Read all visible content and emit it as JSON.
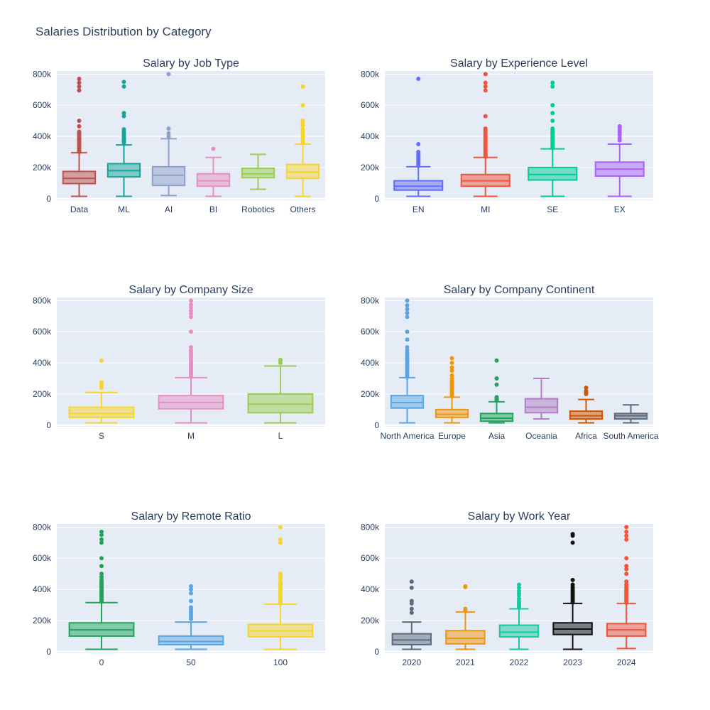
{
  "page_title": "Salaries Distribution by Category",
  "y_tick_labels": [
    "0",
    "200k",
    "400k",
    "600k",
    "800k"
  ],
  "chart_data": [
    {
      "type": "box",
      "title": "Salary by Job Type",
      "ylim": [
        -10000,
        820000
      ],
      "yticks": [
        0,
        200000,
        400000,
        600000,
        800000
      ],
      "grid": true,
      "categories": [
        "Data",
        "ML",
        "AI",
        "BI",
        "Robotics",
        "Others"
      ],
      "colors": [
        "#c0504d",
        "#17a398",
        "#8fa0c9",
        "#e68fc3",
        "#9bcd52",
        "#f7d42e"
      ],
      "boxes": [
        {
          "min": 15000,
          "q1": 97000,
          "median": 130000,
          "q3": 175000,
          "max": 295000,
          "outliers": [
            300000,
            305000,
            310000,
            320000,
            330000,
            340000,
            350000,
            360000,
            370000,
            380000,
            390000,
            400000,
            410000,
            420000,
            430000,
            465000,
            500000,
            695000,
            720000,
            745000,
            770000
          ]
        },
        {
          "min": 15000,
          "q1": 140000,
          "median": 180000,
          "q3": 225000,
          "max": 345000,
          "outliers": [
            360000,
            370000,
            380000,
            390000,
            400000,
            410000,
            420000,
            430000,
            445000,
            530000,
            550000,
            720000,
            750000
          ]
        },
        {
          "min": 20000,
          "q1": 85000,
          "median": 150000,
          "q3": 205000,
          "max": 385000,
          "outliers": [
            400000,
            420000,
            450000,
            800000
          ]
        },
        {
          "min": 15000,
          "q1": 80000,
          "median": 115000,
          "q3": 160000,
          "max": 265000,
          "outliers": [
            320000
          ]
        },
        {
          "min": 60000,
          "q1": 135000,
          "median": 160000,
          "q3": 195000,
          "max": 285000,
          "outliers": []
        },
        {
          "min": 15000,
          "q1": 130000,
          "median": 170000,
          "q3": 220000,
          "max": 350000,
          "outliers": [
            360000,
            370000,
            380000,
            390000,
            400000,
            410000,
            420000,
            430000,
            445000,
            470000,
            490000,
            500000,
            600000,
            720000
          ]
        }
      ]
    },
    {
      "type": "box",
      "title": "Salary by Experience Level",
      "ylim": [
        -10000,
        820000
      ],
      "yticks": [
        0,
        200000,
        400000,
        600000,
        800000
      ],
      "grid": true,
      "categories": [
        "EN",
        "MI",
        "SE",
        "EX"
      ],
      "colors": [
        "#636efa",
        "#ef553b",
        "#00cc96",
        "#ab63fa"
      ],
      "boxes": [
        {
          "min": 15000,
          "q1": 55000,
          "median": 80000,
          "q3": 115000,
          "max": 205000,
          "outliers": [
            210000,
            220000,
            230000,
            240000,
            250000,
            260000,
            270000,
            280000,
            290000,
            300000,
            350000,
            770000
          ]
        },
        {
          "min": 15000,
          "q1": 80000,
          "median": 115000,
          "q3": 155000,
          "max": 265000,
          "outliers": [
            270000,
            280000,
            290000,
            300000,
            310000,
            320000,
            330000,
            340000,
            350000,
            360000,
            370000,
            380000,
            390000,
            400000,
            410000,
            420000,
            430000,
            440000,
            450000,
            530000,
            695000,
            720000,
            745000,
            800000
          ]
        },
        {
          "min": 15000,
          "q1": 120000,
          "median": 155000,
          "q3": 200000,
          "max": 320000,
          "outliers": [
            325000,
            335000,
            345000,
            355000,
            365000,
            375000,
            385000,
            395000,
            405000,
            415000,
            425000,
            435000,
            450000,
            500000,
            550000,
            600000,
            720000,
            745000
          ]
        },
        {
          "min": 15000,
          "q1": 145000,
          "median": 190000,
          "q3": 235000,
          "max": 350000,
          "outliers": [
            375000,
            390000,
            410000,
            425000,
            440000,
            455000,
            465000
          ]
        }
      ]
    },
    {
      "type": "box",
      "title": "Salary by Company Size",
      "ylim": [
        -10000,
        820000
      ],
      "yticks": [
        0,
        200000,
        400000,
        600000,
        800000
      ],
      "grid": true,
      "categories": [
        "S",
        "M",
        "L"
      ],
      "colors": [
        "#f7d42e",
        "#e68fc3",
        "#9bcd52"
      ],
      "boxes": [
        {
          "min": 15000,
          "q1": 50000,
          "median": 75000,
          "q3": 115000,
          "max": 210000,
          "outliers": [
            240000,
            255000,
            265000,
            275000,
            415000
          ]
        },
        {
          "min": 15000,
          "q1": 105000,
          "median": 145000,
          "q3": 190000,
          "max": 305000,
          "outliers": [
            310000,
            320000,
            330000,
            340000,
            350000,
            360000,
            370000,
            380000,
            390000,
            400000,
            410000,
            420000,
            430000,
            440000,
            450000,
            465000,
            480000,
            500000,
            600000,
            695000,
            715000,
            735000,
            755000,
            775000,
            800000
          ]
        },
        {
          "min": 15000,
          "q1": 80000,
          "median": 135000,
          "q3": 200000,
          "max": 380000,
          "outliers": [
            400000,
            410000,
            420000
          ]
        }
      ]
    },
    {
      "type": "box",
      "title": "Salary by Company Continent",
      "ylim": [
        -10000,
        820000
      ],
      "yticks": [
        0,
        200000,
        400000,
        600000,
        800000
      ],
      "grid": true,
      "categories": [
        "North America",
        "Europe",
        "Asia",
        "Oceania",
        "Africa",
        "South America"
      ],
      "colors": [
        "#5ba6e0",
        "#f0960e",
        "#21a35a",
        "#b27cc6",
        "#d35400",
        "#5e6b7d"
      ],
      "boxes": [
        {
          "min": 15000,
          "q1": 110000,
          "median": 145000,
          "q3": 190000,
          "max": 305000,
          "outliers": [
            310000,
            320000,
            330000,
            340000,
            350000,
            360000,
            370000,
            380000,
            390000,
            400000,
            410000,
            420000,
            430000,
            440000,
            450000,
            465000,
            480000,
            500000,
            550000,
            600000,
            695000,
            720000,
            745000,
            770000,
            800000
          ]
        },
        {
          "min": 15000,
          "q1": 50000,
          "median": 70000,
          "q3": 100000,
          "max": 180000,
          "outliers": [
            185000,
            195000,
            205000,
            215000,
            225000,
            235000,
            245000,
            255000,
            265000,
            275000,
            285000,
            300000,
            320000,
            350000,
            370000,
            400000,
            430000
          ]
        },
        {
          "min": 15000,
          "q1": 25000,
          "median": 45000,
          "q3": 75000,
          "max": 150000,
          "outliers": [
            160000,
            170000,
            175000,
            180000,
            260000,
            300000,
            415000
          ]
        },
        {
          "min": 40000,
          "q1": 80000,
          "median": 115000,
          "q3": 170000,
          "max": 300000,
          "outliers": []
        },
        {
          "min": 15000,
          "q1": 40000,
          "median": 60000,
          "q3": 90000,
          "max": 165000,
          "outliers": [
            200000,
            210000,
            220000,
            240000
          ]
        },
        {
          "min": 15000,
          "q1": 40000,
          "median": 60000,
          "q3": 75000,
          "max": 130000,
          "outliers": []
        }
      ]
    },
    {
      "type": "box",
      "title": "Salary by Remote Ratio",
      "ylim": [
        -10000,
        820000
      ],
      "yticks": [
        0,
        200000,
        400000,
        600000,
        800000
      ],
      "grid": true,
      "categories": [
        "0",
        "50",
        "100"
      ],
      "colors": [
        "#21a35a",
        "#5ba6e0",
        "#f7d42e"
      ],
      "boxes": [
        {
          "min": 15000,
          "q1": 100000,
          "median": 140000,
          "q3": 185000,
          "max": 315000,
          "outliers": [
            320000,
            330000,
            340000,
            350000,
            360000,
            370000,
            380000,
            390000,
            400000,
            410000,
            420000,
            430000,
            440000,
            450000,
            465000,
            480000,
            500000,
            550000,
            600000,
            700000,
            720000,
            750000,
            770000
          ]
        },
        {
          "min": 15000,
          "q1": 45000,
          "median": 65000,
          "q3": 100000,
          "max": 190000,
          "outliers": [
            210000,
            225000,
            240000,
            255000,
            270000,
            285000,
            325000,
            375000,
            400000,
            420000
          ]
        },
        {
          "min": 15000,
          "q1": 95000,
          "median": 135000,
          "q3": 175000,
          "max": 305000,
          "outliers": [
            310000,
            320000,
            330000,
            340000,
            350000,
            360000,
            370000,
            380000,
            390000,
            400000,
            410000,
            420000,
            430000,
            440000,
            450000,
            470000,
            490000,
            500000,
            700000,
            720000,
            800000
          ]
        }
      ]
    },
    {
      "type": "box",
      "title": "Salary by Work Year",
      "ylim": [
        -10000,
        820000
      ],
      "yticks": [
        0,
        200000,
        400000,
        600000,
        800000
      ],
      "grid": true,
      "categories": [
        "2020",
        "2021",
        "2022",
        "2023",
        "2024"
      ],
      "colors": [
        "#5e6b7d",
        "#f0960e",
        "#17c9a0",
        "#111111",
        "#ef553b"
      ],
      "boxes": [
        {
          "min": 15000,
          "q1": 45000,
          "median": 75000,
          "q3": 115000,
          "max": 190000,
          "outliers": [
            250000,
            275000,
            310000,
            325000,
            410000,
            450000
          ]
        },
        {
          "min": 15000,
          "q1": 50000,
          "median": 85000,
          "q3": 135000,
          "max": 255000,
          "outliers": [
            265000,
            275000,
            415000,
            420000
          ]
        },
        {
          "min": 15000,
          "q1": 95000,
          "median": 125000,
          "q3": 170000,
          "max": 275000,
          "outliers": [
            285000,
            295000,
            305000,
            315000,
            325000,
            340000,
            360000,
            375000,
            390000,
            410000,
            430000
          ]
        },
        {
          "min": 15000,
          "q1": 110000,
          "median": 145000,
          "q3": 185000,
          "max": 310000,
          "outliers": [
            315000,
            325000,
            335000,
            345000,
            355000,
            365000,
            375000,
            385000,
            395000,
            405000,
            415000,
            430000,
            460000,
            700000,
            745000,
            755000
          ]
        },
        {
          "min": 20000,
          "q1": 100000,
          "median": 140000,
          "q3": 180000,
          "max": 310000,
          "outliers": [
            315000,
            325000,
            335000,
            345000,
            355000,
            365000,
            375000,
            385000,
            395000,
            405000,
            415000,
            430000,
            450000,
            500000,
            530000,
            550000,
            600000,
            720000,
            745000,
            770000,
            800000
          ]
        }
      ]
    }
  ]
}
